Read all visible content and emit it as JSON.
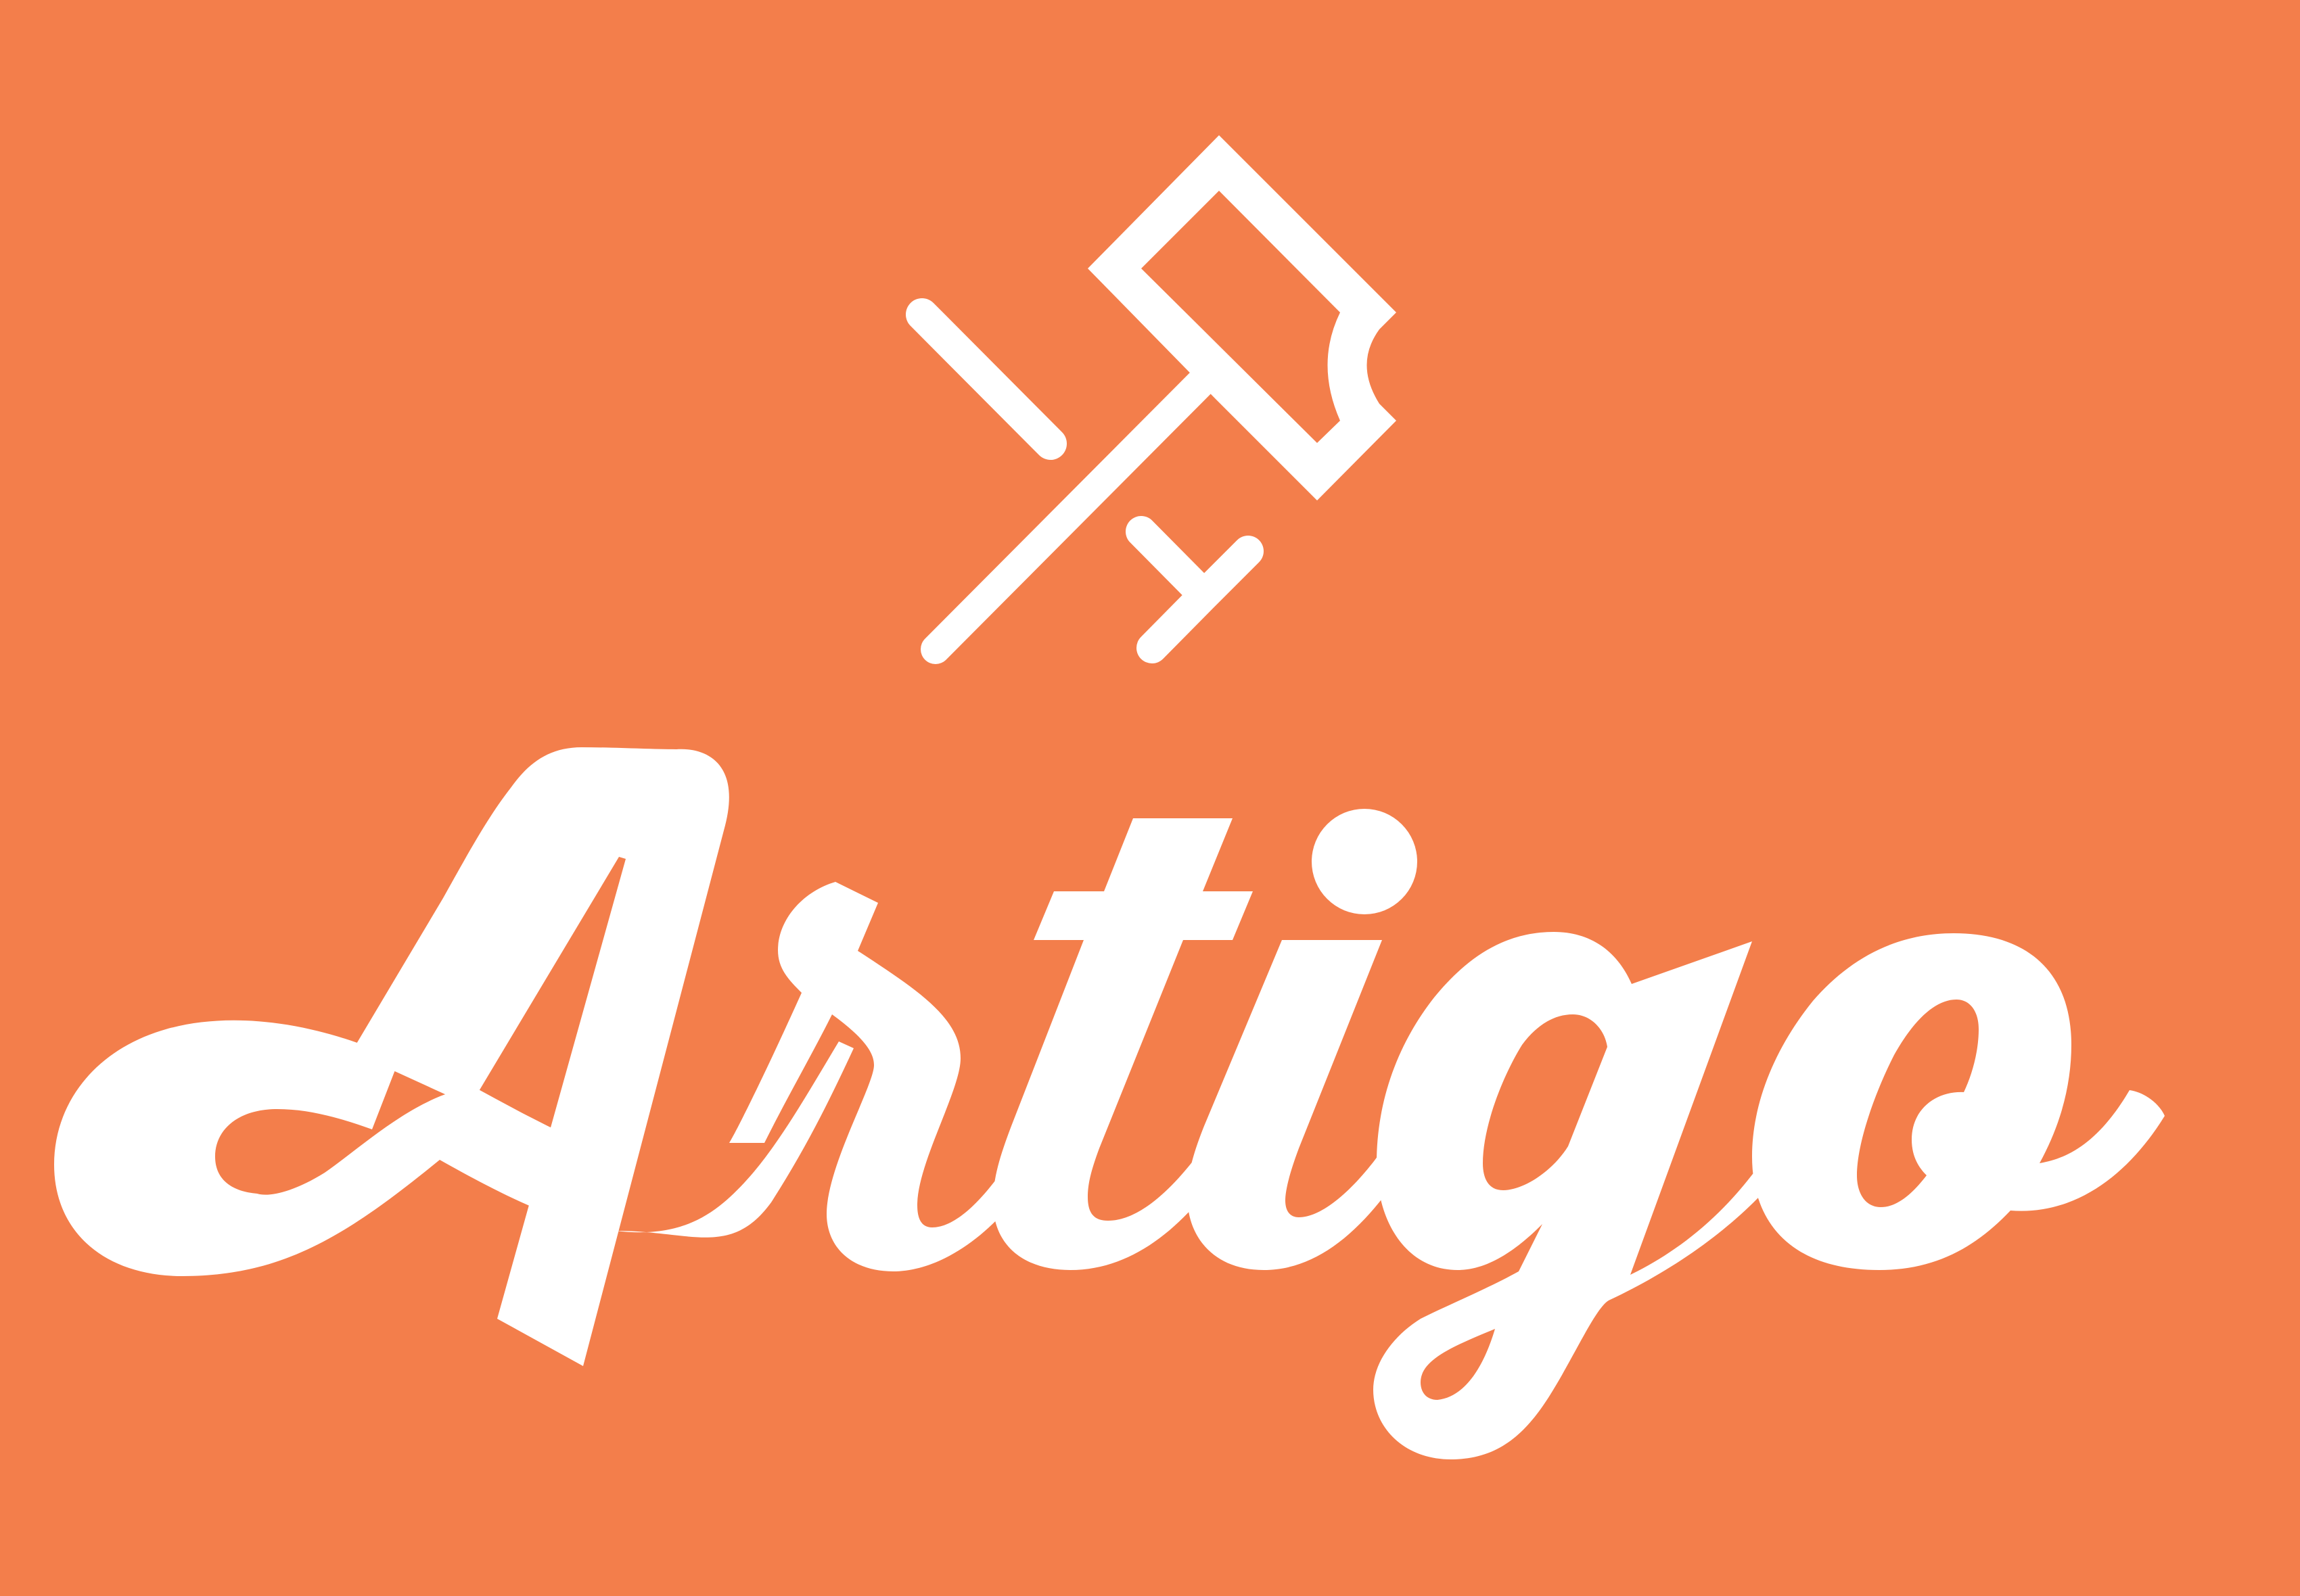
{
  "brand": {
    "name": "Artigo",
    "icon": "paint-roller-icon"
  },
  "colors": {
    "background": "#F37E4B",
    "foreground": "#FFFFFF"
  }
}
